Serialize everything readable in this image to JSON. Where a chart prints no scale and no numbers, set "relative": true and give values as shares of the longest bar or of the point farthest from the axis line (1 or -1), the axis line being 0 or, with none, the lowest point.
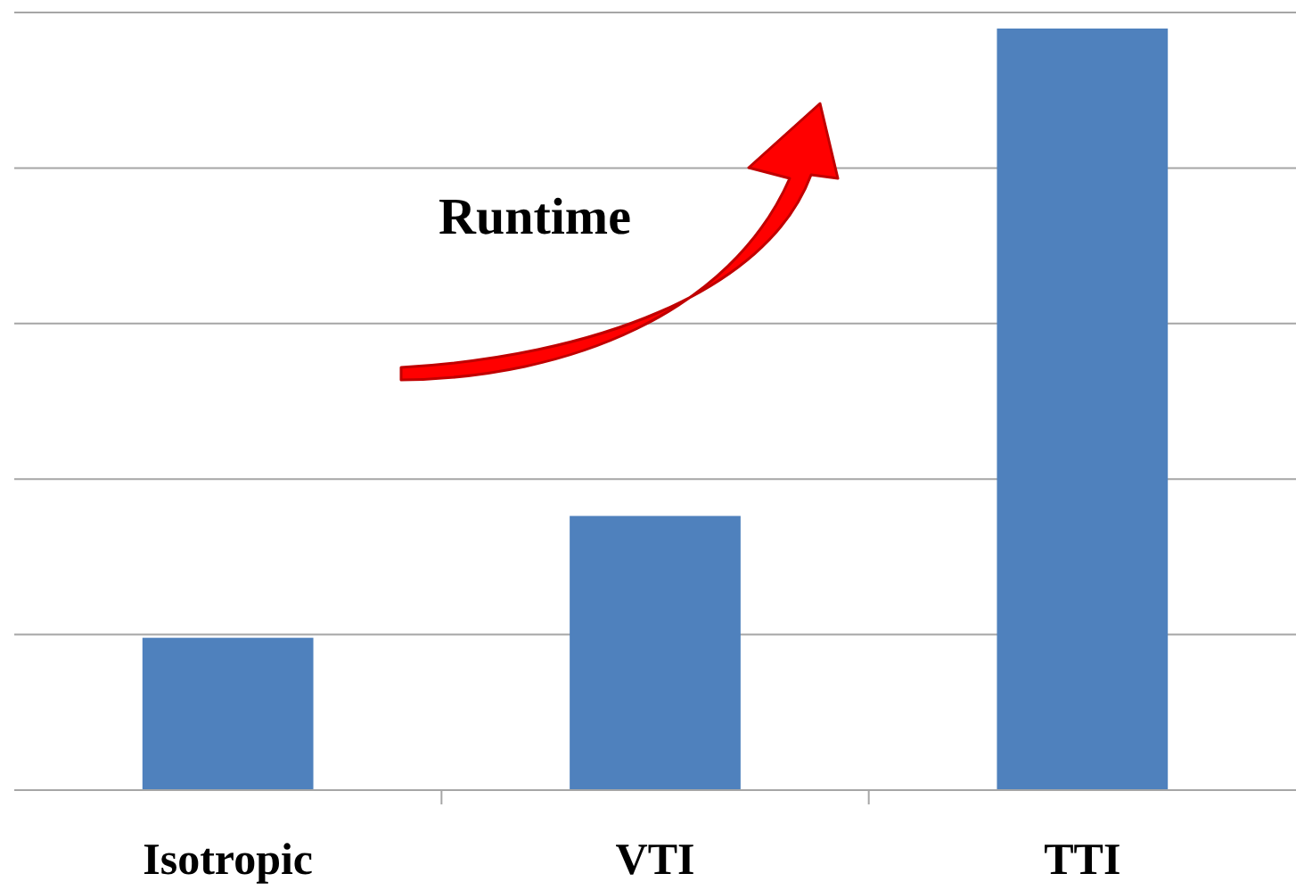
{
  "chart_data": {
    "type": "bar",
    "relative": true,
    "categories": [
      "Isotropic",
      "VTI",
      "TTI"
    ],
    "values": [
      0.2,
      0.36,
      1
    ],
    "color": "#4f81bd",
    "grid": true,
    "annotations": [
      "Runtime"
    ]
  }
}
